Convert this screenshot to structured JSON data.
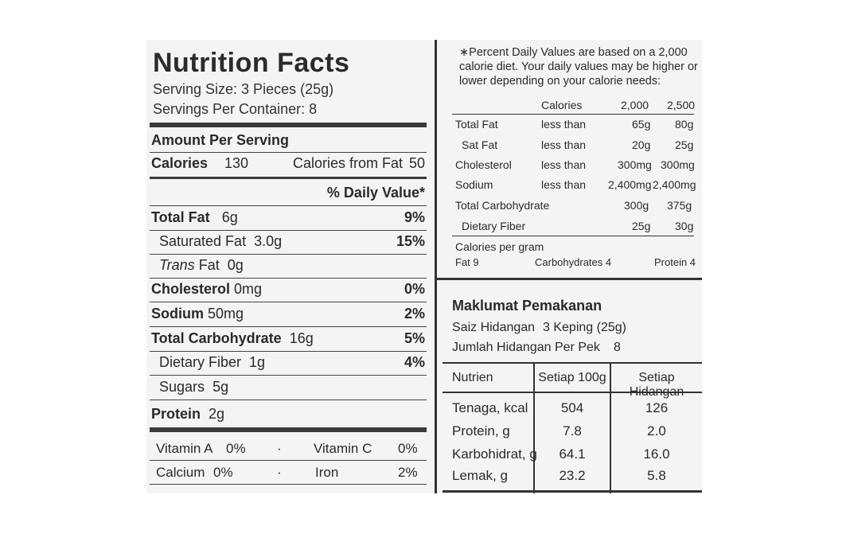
{
  "nutrition_facts": {
    "title": "Nutrition Facts",
    "serving_size": "Serving Size: 3 Pieces (25g)",
    "servings_per_container": "Servings Per Container: 8",
    "amount_per_serving": "Amount Per Serving",
    "calories_label": "Calories",
    "calories_value": "130",
    "calories_from_fat_label": "Calories from Fat",
    "calories_from_fat_value": "50",
    "daily_value_header": "% Daily Value*",
    "rows": [
      {
        "label": "Total Fat",
        "amount": "6g",
        "dv": "9%"
      },
      {
        "label": "Saturated Fat",
        "amount": "3.0g",
        "dv": "15%"
      },
      {
        "label": "Trans",
        "label_suffix": "Fat",
        "amount": "0g",
        "dv": ""
      },
      {
        "label": "Cholesterol",
        "amount": "0mg",
        "dv": "0%"
      },
      {
        "label": "Sodium",
        "amount": "50mg",
        "dv": "2%"
      },
      {
        "label": "Total Carbohydrate",
        "amount": "16g",
        "dv": "5%"
      },
      {
        "label": "Dietary Fiber",
        "amount": "1g",
        "dv": "4%"
      },
      {
        "label": "Sugars",
        "amount": "5g",
        "dv": ""
      },
      {
        "label": "Protein",
        "amount": "2g",
        "dv": ""
      }
    ],
    "vitamins": [
      {
        "label": "Vitamin A",
        "value": "0%"
      },
      {
        "label": "Vitamin C",
        "value": "0%"
      },
      {
        "label": "Calcium",
        "value": "0%"
      },
      {
        "label": "Iron",
        "value": "2%"
      }
    ],
    "separator": "·"
  },
  "footnote": {
    "line1": "∗Percent Daily Values are based on a 2,000",
    "line2": "calorie diet. Your daily values may be higher or",
    "line3": "lower depending on your calorie needs:",
    "header": [
      "Calories",
      "2,000",
      "2,500"
    ],
    "rows": [
      {
        "nutrient": "Total Fat",
        "qual": "less than",
        "v2000": "65g",
        "v2500": "80g"
      },
      {
        "nutrient": "Sat Fat",
        "qual": "less than",
        "v2000": "20g",
        "v2500": "25g"
      },
      {
        "nutrient": "Cholesterol",
        "qual": "less than",
        "v2000": "300mg",
        "v2500": "300mg"
      },
      {
        "nutrient": "Sodium",
        "qual": "less than",
        "v2000": "2,400mg",
        "v2500": "2,400mg"
      },
      {
        "nutrient": "Total Carbohydrate",
        "qual": "",
        "v2000": "300g",
        "v2500": "375g"
      },
      {
        "nutrient": "Dietary Fiber",
        "qual": "",
        "v2000": "25g",
        "v2500": "30g"
      }
    ],
    "cal_per_gram": "Calories per gram",
    "fat": "Fat 9",
    "carbs": "Carbohydrates 4",
    "protein": "Protein 4"
  },
  "maklumat": {
    "title": "Maklumat Pemakanan",
    "saiz_label": "Saiz Hidangan",
    "saiz_value": "3 Keping (25g)",
    "jumlah_label": "Jumlah Hidangan Per Pek",
    "jumlah_value": "8",
    "headers": [
      "Nutrien",
      "Setiap 100g",
      "Setiap Hidangan"
    ],
    "rows": [
      {
        "name": "Tenaga, kcal",
        "per100": "504",
        "perServing": "126"
      },
      {
        "name": "Protein, g",
        "per100": "7.8",
        "perServing": "2.0"
      },
      {
        "name": "Karbohidrat, g",
        "per100": "64.1",
        "perServing": "16.0"
      },
      {
        "name": "Lemak, g",
        "per100": "23.2",
        "perServing": "5.8"
      }
    ]
  }
}
